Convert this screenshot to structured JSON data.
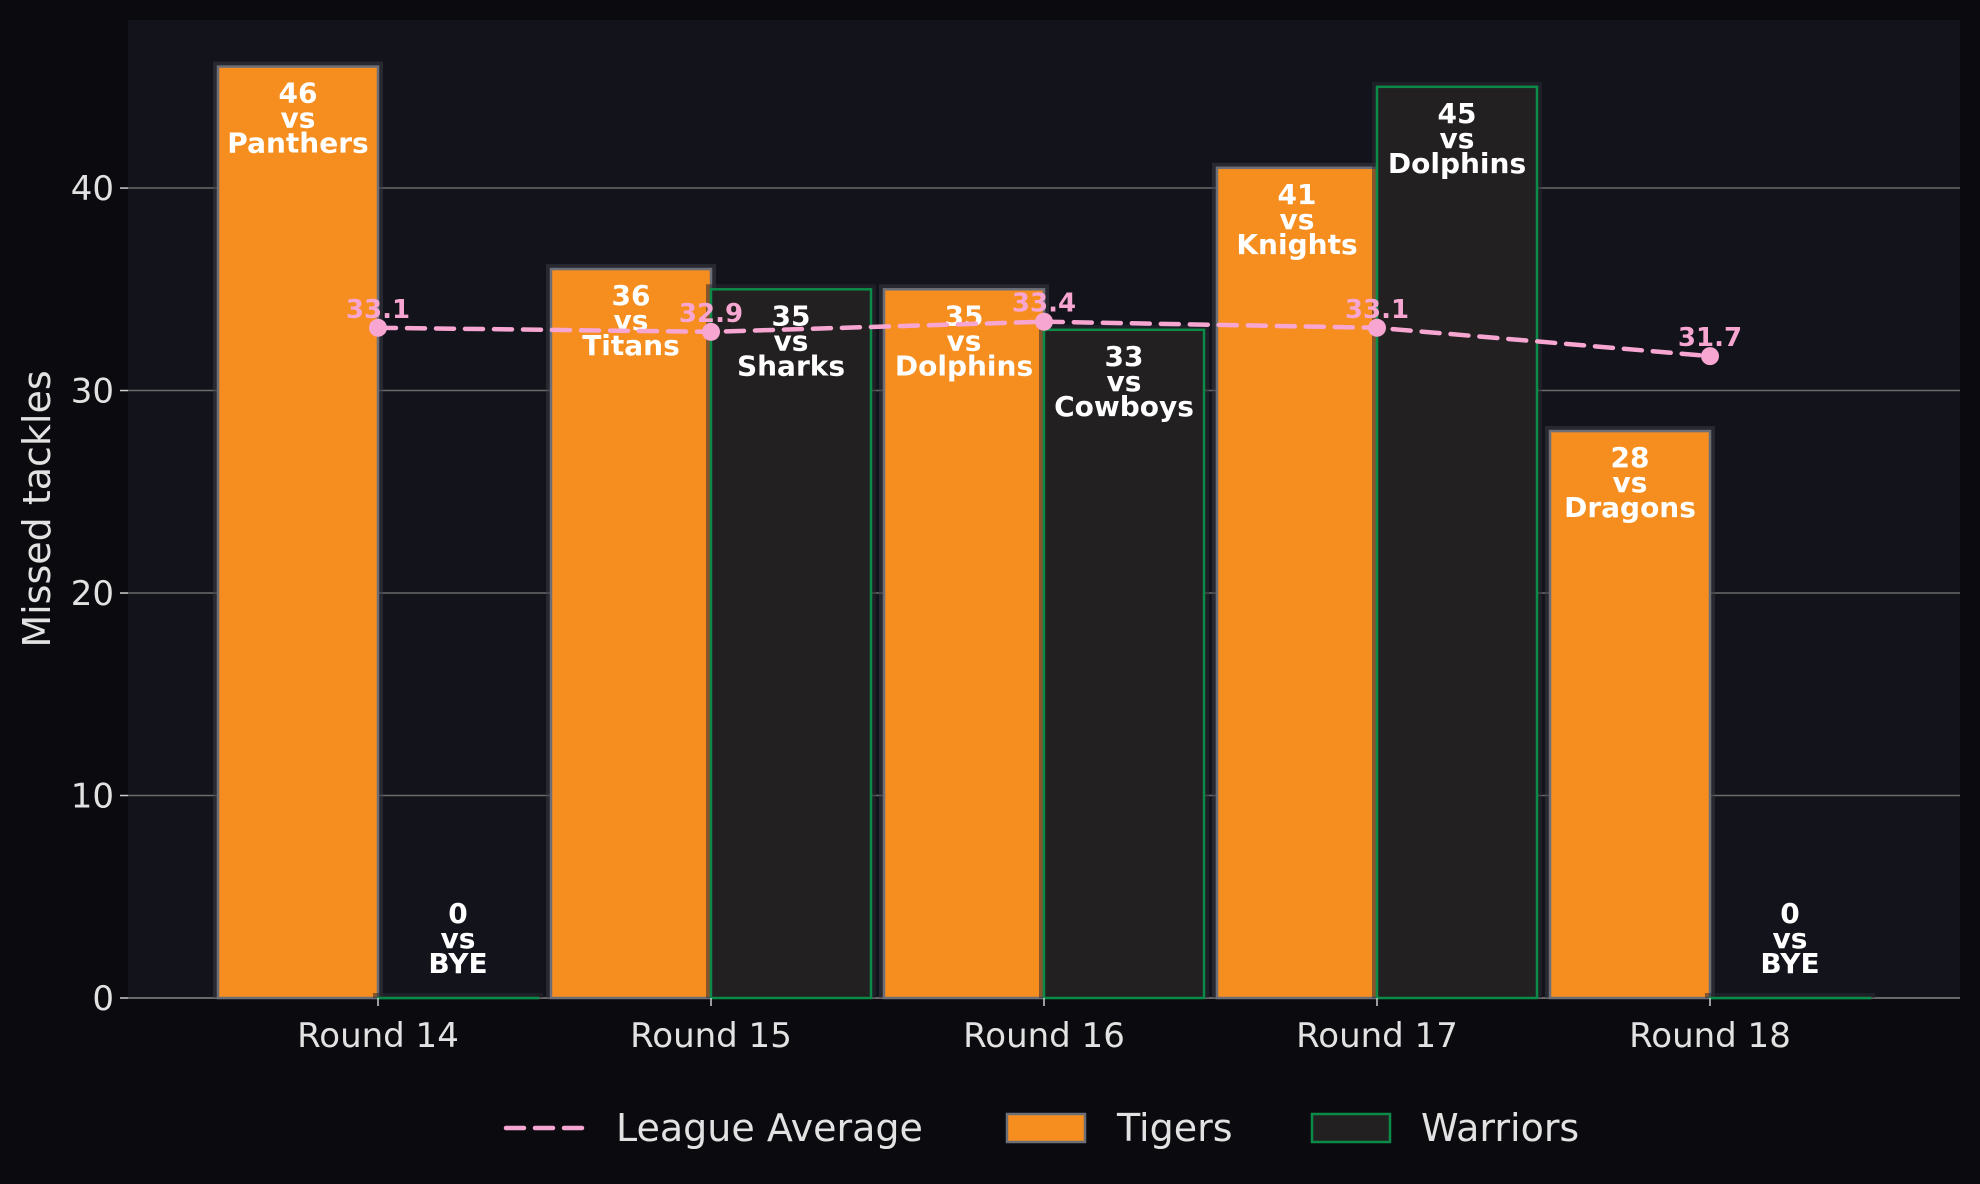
{
  "chart_data": {
    "type": "bar",
    "categories": [
      "Round 14",
      "Round 15",
      "Round 16",
      "Round 17",
      "Round 18"
    ],
    "ylabel": "Missed tackles",
    "ylim": [
      0,
      48.3
    ],
    "yticks": [
      0,
      10,
      20,
      30,
      40
    ],
    "grid": true,
    "legend_position": "bottom",
    "series": [
      {
        "name": "Tigers",
        "kind": "bar",
        "color": "#f68d1f",
        "values": [
          46,
          36,
          35,
          41,
          28
        ],
        "opponents": [
          "Panthers",
          "Titans",
          "Dolphins",
          "Knights",
          "Dragons"
        ]
      },
      {
        "name": "Warriors",
        "kind": "bar",
        "color": "#232021",
        "edge_color": "#0b8a48",
        "values": [
          0,
          35,
          33,
          45,
          0
        ],
        "opponents": [
          "BYE",
          "Sharks",
          "Cowboys",
          "Dolphins",
          "BYE"
        ]
      },
      {
        "name": "League Average",
        "kind": "line",
        "style": "dashed",
        "color": "#f7a6d2",
        "values": [
          33.1,
          32.9,
          33.4,
          33.1,
          31.7
        ],
        "labels": [
          "33.1",
          "32.9",
          "33.4",
          "33.1",
          "31.7"
        ]
      }
    ],
    "vs_word": "vs",
    "colors": {
      "background": "#0b0b0f",
      "plot_background": "#12131b",
      "grid": "#6b6b6b",
      "text": "#e2e2e2"
    }
  }
}
